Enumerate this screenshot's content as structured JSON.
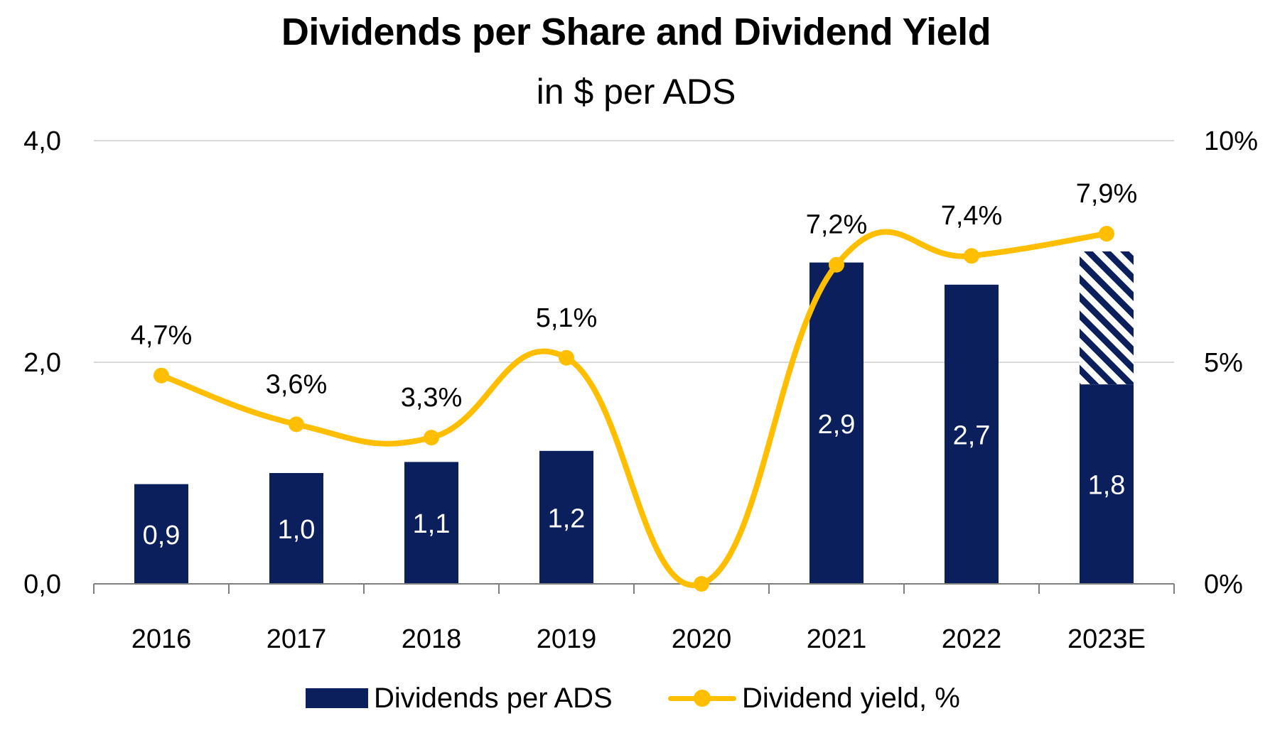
{
  "chart_data": {
    "type": "bar",
    "title": "Dividends per Share and Dividend Yield",
    "subtitle": "in $ per ADS",
    "categories": [
      "2016",
      "2017",
      "2018",
      "2019",
      "2020",
      "2021",
      "2022",
      "2023E"
    ],
    "series": [
      {
        "name": "Dividends per ADS",
        "type": "bar",
        "axis": "left",
        "values": [
          0.9,
          1.0,
          1.1,
          1.2,
          0.0,
          2.9,
          2.7,
          1.8
        ],
        "labels": [
          "0,9",
          "1,0",
          "1,1",
          "1,2",
          "",
          "2,9",
          "2,7",
          "1,8"
        ],
        "projected_extension": [
          0,
          0,
          0,
          0,
          0,
          0,
          0,
          1.2
        ]
      },
      {
        "name": "Dividend yield, %",
        "type": "line",
        "axis": "right",
        "values": [
          4.7,
          3.6,
          3.3,
          5.1,
          0.0,
          7.2,
          7.4,
          7.9
        ],
        "labels": [
          "4,7%",
          "3,6%",
          "3,3%",
          "5,1%",
          "",
          "7,2%",
          "7,4%",
          "7,9%"
        ]
      }
    ],
    "left_axis": {
      "ticks": [
        "4,0",
        "2,0",
        "0,0"
      ],
      "tick_values": [
        4,
        2,
        0
      ],
      "ylim": [
        0,
        4
      ]
    },
    "right_axis": {
      "ticks": [
        "10%",
        "5%",
        "0%"
      ],
      "tick_values": [
        10,
        5,
        0
      ],
      "ylim": [
        0,
        10
      ]
    },
    "grid": true,
    "legend_position": "bottom",
    "colors": {
      "bar": "#0b1f5c",
      "line": "#ffbe00",
      "grid": "#d9d9d9",
      "axis": "#7f7f7f"
    }
  },
  "legend": {
    "bar_label": "Dividends per ADS",
    "line_label": "Dividend yield, %"
  }
}
